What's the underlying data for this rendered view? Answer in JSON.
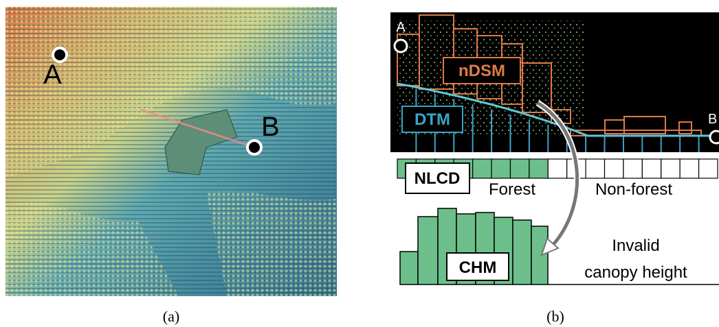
{
  "panel_a": {
    "point_a": "A",
    "point_b": "B",
    "caption": "(a)"
  },
  "panel_b": {
    "point_a": "A",
    "point_b": "B",
    "ndsm": "nDSM",
    "dtm": "DTM",
    "nlcd": "NLCD",
    "forest": "Forest",
    "non_forest": "Non-forest",
    "chm": "CHM",
    "invalid": [
      "Invalid",
      "canopy height"
    ],
    "caption": "(b)"
  }
}
